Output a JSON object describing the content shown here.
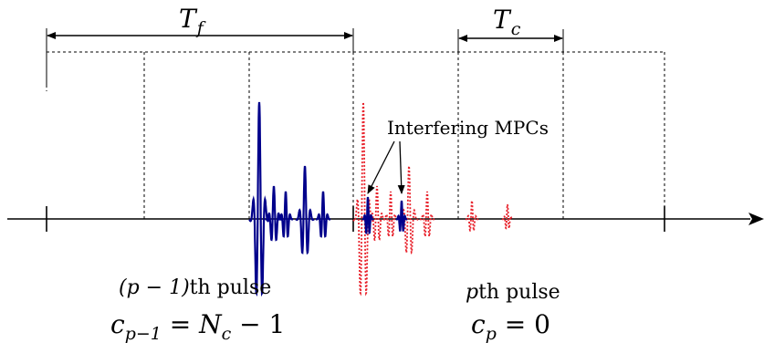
{
  "labels": {
    "frame_duration": "T",
    "frame_duration_sub": "f",
    "chip_duration": "T",
    "chip_duration_sub": "c",
    "interfering": "Interfering MPCs",
    "prev_pulse_var": "(p − 1)",
    "prev_pulse_text": "th pulse",
    "cur_pulse_var": "p",
    "cur_pulse_text": "th pulse",
    "prev_code_c": "c",
    "prev_code_sub": "p−1",
    "prev_code_rhs_eq": " = ",
    "prev_code_rhs_N": "N",
    "prev_code_rhs_Nsub": "c",
    "prev_code_rhs_tail": " − 1",
    "cur_code_c": "c",
    "cur_code_sub": "p",
    "cur_code_rhs": " = 0"
  },
  "colors": {
    "axis": "#000000",
    "prev_pulse": "#00008b",
    "cur_pulse": "#e8202a"
  }
}
